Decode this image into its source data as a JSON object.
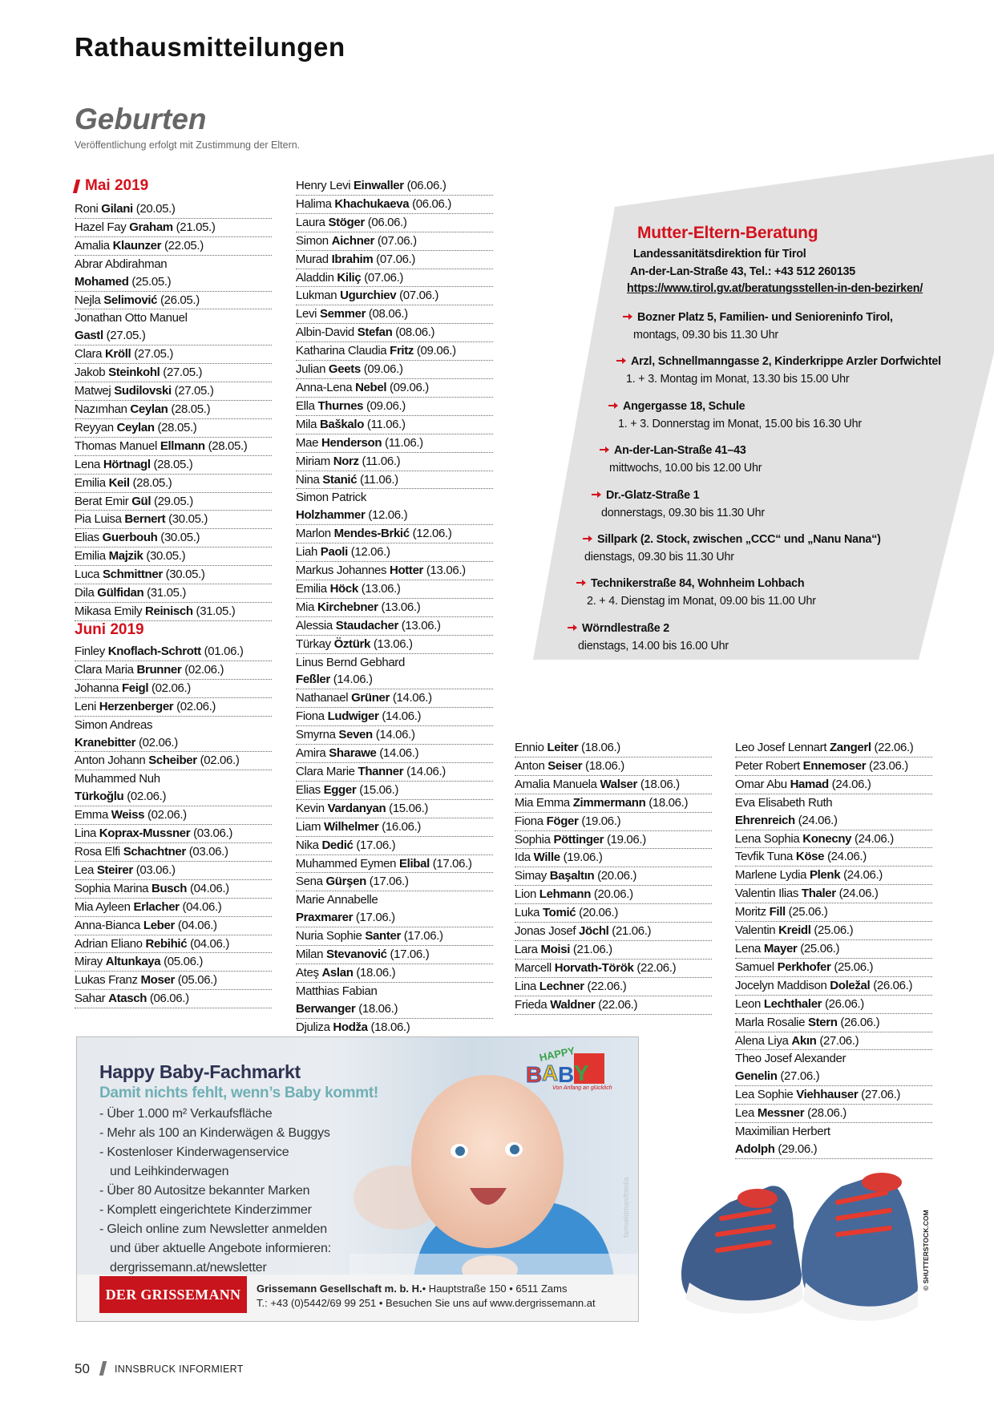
{
  "header": {
    "title": "Rathausmitteilungen"
  },
  "section": {
    "title": "Geburten",
    "note": "Veröffentlichung erfolgt mit Zustimmung der Eltern."
  },
  "colors": {
    "accent": "#d3111c",
    "box_bg": "#e2e2e2"
  },
  "births": {
    "mai": {
      "heading": "Mai 2019",
      "entries": [
        {
          "given": "Roni",
          "surname": "Gilani",
          "date": "(20.05.)"
        },
        {
          "given": "Hazel Fay",
          "surname": "Graham",
          "date": "(21.05.)"
        },
        {
          "given": "Amalia",
          "surname": "Klaunzer",
          "date": "(22.05.)"
        },
        {
          "given": "Abrar Abdirahman",
          "surname": "Mohamed",
          "date": "(25.05.)",
          "wrap": true
        },
        {
          "given": "Nejla",
          "surname": "Selimović",
          "date": "(26.05.)"
        },
        {
          "given": "Jonathan Otto Manuel",
          "surname": "Gastl",
          "date": "(27.05.)",
          "wrap": true
        },
        {
          "given": "Clara",
          "surname": "Kröll",
          "date": "(27.05.)"
        },
        {
          "given": "Jakob",
          "surname": "Steinkohl",
          "date": "(27.05.)"
        },
        {
          "given": "Matwej",
          "surname": "Sudilovski",
          "date": "(27.05.)"
        },
        {
          "given": "Nazımhan",
          "surname": "Ceylan",
          "date": "(28.05.)"
        },
        {
          "given": "Reyyan",
          "surname": "Ceylan",
          "date": "(28.05.)"
        },
        {
          "given": "Thomas Manuel",
          "surname": "Ellmann",
          "date": "(28.05.)"
        },
        {
          "given": "Lena",
          "surname": "Hörtnagl",
          "date": "(28.05.)"
        },
        {
          "given": "Emilia",
          "surname": "Keil",
          "date": "(28.05.)"
        },
        {
          "given": "Berat Emir",
          "surname": "Gül",
          "date": "(29.05.)"
        },
        {
          "given": "Pia Luisa",
          "surname": "Bernert",
          "date": "(30.05.)"
        },
        {
          "given": "Elias",
          "surname": "Guerbouh",
          "date": "(30.05.)"
        },
        {
          "given": "Emilia",
          "surname": "Majzik",
          "date": "(30.05.)"
        },
        {
          "given": "Luca",
          "surname": "Schmittner",
          "date": "(30.05.)"
        },
        {
          "given": "Dila",
          "surname": "Gülfidan",
          "date": "(31.05.)"
        },
        {
          "given": "Mikasa Emily",
          "surname": "Reinisch",
          "date": "(31.05.)"
        }
      ]
    },
    "juni": {
      "heading": "Juni 2019",
      "col1": [
        {
          "given": "Finley",
          "surname": "Knoflach-Schrott",
          "date": "(01.06.)"
        },
        {
          "given": "Clara Maria",
          "surname": "Brunner",
          "date": "(02.06.)"
        },
        {
          "given": "Johanna",
          "surname": "Feigl",
          "date": "(02.06.)"
        },
        {
          "given": "Leni",
          "surname": "Herzenberger",
          "date": "(02.06.)"
        },
        {
          "given": "Simon Andreas",
          "surname": "Kranebitter",
          "date": "(02.06.)",
          "wrap": true
        },
        {
          "given": "Anton Johann",
          "surname": "Scheiber",
          "date": "(02.06.)"
        },
        {
          "given": "Muhammed Nuh",
          "surname": "Türkoğlu",
          "date": "(02.06.)",
          "wrap": true
        },
        {
          "given": "Emma",
          "surname": "Weiss",
          "date": "(02.06.)"
        },
        {
          "given": "Lina",
          "surname": "Koprax-Mussner",
          "date": "(03.06.)"
        },
        {
          "given": "Rosa Elfi",
          "surname": "Schachtner",
          "date": "(03.06.)"
        },
        {
          "given": "Lea",
          "surname": "Steirer",
          "date": "(03.06.)"
        },
        {
          "given": "Sophia Marina",
          "surname": "Busch",
          "date": "(04.06.)"
        },
        {
          "given": "Mia Ayleen",
          "surname": "Erlacher",
          "date": "(04.06.)"
        },
        {
          "given": "Anna-Bianca",
          "surname": "Leber",
          "date": "(04.06.)"
        },
        {
          "given": "Adrian Eliano",
          "surname": "Rebihić",
          "date": "(04.06.)"
        },
        {
          "given": "Miray",
          "surname": "Altunkaya",
          "date": "(05.06.)"
        },
        {
          "given": "Lukas Franz",
          "surname": "Moser",
          "date": "(05.06.)"
        },
        {
          "given": "Sahar",
          "surname": "Atasch",
          "date": "(06.06.)"
        }
      ],
      "col2": [
        {
          "given": "Henry Levi",
          "surname": "Einwaller",
          "date": "(06.06.)"
        },
        {
          "given": "Halima",
          "surname": "Khachukaeva",
          "date": "(06.06.)"
        },
        {
          "given": "Laura",
          "surname": "Stöger",
          "date": "(06.06.)"
        },
        {
          "given": "Simon",
          "surname": "Aichner",
          "date": "(07.06.)"
        },
        {
          "given": "Murad",
          "surname": "Ibrahim",
          "date": "(07.06.)"
        },
        {
          "given": "Aladdin",
          "surname": "Kiliç",
          "date": "(07.06.)"
        },
        {
          "given": "Lukman",
          "surname": "Ugurchiev",
          "date": "(07.06.)"
        },
        {
          "given": "Levi",
          "surname": "Semmer",
          "date": "(08.06.)"
        },
        {
          "given": "Albin-David",
          "surname": "Stefan",
          "date": "(08.06.)"
        },
        {
          "given": "Katharina Claudia",
          "surname": "Fritz",
          "date": "(09.06.)"
        },
        {
          "given": "Julian",
          "surname": "Geets",
          "date": "(09.06.)"
        },
        {
          "given": "Anna-Lena",
          "surname": "Nebel",
          "date": "(09.06.)"
        },
        {
          "given": "Ella",
          "surname": "Thurnes",
          "date": "(09.06.)"
        },
        {
          "given": "Mila",
          "surname": "Baškalo",
          "date": "(11.06.)"
        },
        {
          "given": "Mae",
          "surname": "Henderson",
          "date": "(11.06.)"
        },
        {
          "given": "Miriam",
          "surname": "Norz",
          "date": "(11.06.)"
        },
        {
          "given": "Nina",
          "surname": "Stanić",
          "date": "(11.06.)"
        },
        {
          "given": "Simon Patrick",
          "surname": "Holzhammer",
          "date": "(12.06.)",
          "wrap": true
        },
        {
          "given": "Marlon",
          "surname": "Mendes-Brkić",
          "date": "(12.06.)"
        },
        {
          "given": "Liah",
          "surname": "Paoli",
          "date": "(12.06.)"
        },
        {
          "given": "Markus Johannes",
          "surname": "Hotter",
          "date": "(13.06.)"
        },
        {
          "given": "Emilia",
          "surname": "Höck",
          "date": "(13.06.)"
        },
        {
          "given": "Mia",
          "surname": "Kirchebner",
          "date": "(13.06.)"
        },
        {
          "given": "Alessia",
          "surname": "Staudacher",
          "date": "(13.06.)"
        },
        {
          "given": "Türkay",
          "surname": "Öztürk",
          "date": "(13.06.)"
        },
        {
          "given": "Linus Bernd Gebhard",
          "surname": "Feßler",
          "date": "(14.06.)",
          "wrap": true
        },
        {
          "given": "Nathanael",
          "surname": "Grüner",
          "date": "(14.06.)"
        },
        {
          "given": "Fiona",
          "surname": "Ludwiger",
          "date": "(14.06.)"
        },
        {
          "given": "Smyrna",
          "surname": "Seven",
          "date": "(14.06.)"
        },
        {
          "given": "Amira",
          "surname": "Sharawe",
          "date": "(14.06.)"
        },
        {
          "given": "Clara Marie",
          "surname": "Thanner",
          "date": "(14.06.)"
        },
        {
          "given": "Elias",
          "surname": "Egger",
          "date": "(15.06.)"
        },
        {
          "given": "Kevin",
          "surname": "Vardanyan",
          "date": "(15.06.)"
        },
        {
          "given": "Liam",
          "surname": "Wilhelmer",
          "date": "(16.06.)"
        },
        {
          "given": "Nika",
          "surname": "Dedić",
          "date": "(17.06.)"
        },
        {
          "given": "Muhammed Eymen",
          "surname": "Elibal",
          "date": "(17.06.)"
        },
        {
          "given": "Sena",
          "surname": "Gürşen",
          "date": "(17.06.)"
        },
        {
          "given": "Marie Annabelle",
          "surname": "Praxmarer",
          "date": "(17.06.)",
          "wrap": true
        },
        {
          "given": "Nuria Sophie",
          "surname": "Santer",
          "date": "(17.06.)"
        },
        {
          "given": "Milan",
          "surname": "Stevanović",
          "date": "(17.06.)"
        },
        {
          "given": "Ateş",
          "surname": "Aslan",
          "date": "(18.06.)"
        },
        {
          "given": "Matthias Fabian",
          "surname": "Berwanger",
          "date": "(18.06.)",
          "wrap": true
        },
        {
          "given": "Djuliza",
          "surname": "Hodža",
          "date": "(18.06.)"
        }
      ],
      "col3": [
        {
          "given": "Ennio",
          "surname": "Leiter",
          "date": "(18.06.)"
        },
        {
          "given": "Anton",
          "surname": "Seiser",
          "date": "(18.06.)"
        },
        {
          "given": "Amalia Manuela",
          "surname": "Walser",
          "date": "(18.06.)"
        },
        {
          "given": "Mia Emma",
          "surname": "Zimmermann",
          "date": "(18.06.)"
        },
        {
          "given": "Fiona",
          "surname": "Föger",
          "date": "(19.06.)"
        },
        {
          "given": "Sophia",
          "surname": "Pöttinger",
          "date": "(19.06.)"
        },
        {
          "given": "Ida",
          "surname": "Wille",
          "date": "(19.06.)"
        },
        {
          "given": "Simay",
          "surname": "Başaltın",
          "date": "(20.06.)"
        },
        {
          "given": "Lion",
          "surname": "Lehmann",
          "date": "(20.06.)"
        },
        {
          "given": "Luka",
          "surname": "Tomić",
          "date": "(20.06.)"
        },
        {
          "given": "Jonas Josef",
          "surname": "Jöchl",
          "date": "(21.06.)"
        },
        {
          "given": "Lara",
          "surname": "Moisi",
          "date": "(21.06.)"
        },
        {
          "given": "Marcell",
          "surname": "Horvath-Török",
          "date": "(22.06.)"
        },
        {
          "given": "Lina",
          "surname": "Lechner",
          "date": "(22.06.)"
        },
        {
          "given": "Frieda",
          "surname": "Waldner",
          "date": "(22.06.)"
        }
      ],
      "col4": [
        {
          "given": "Leo Josef Lennart",
          "surname": "Zangerl",
          "date": "(22.06.)"
        },
        {
          "given": "Peter Robert",
          "surname": "Ennemoser",
          "date": "(23.06.)"
        },
        {
          "given": "Omar Abu",
          "surname": "Hamad",
          "date": "(24.06.)"
        },
        {
          "given": "Eva Elisabeth Ruth",
          "surname": "Ehrenreich",
          "date": "(24.06.)",
          "wrap": true
        },
        {
          "given": "Lena Sophia",
          "surname": "Konecny",
          "date": "(24.06.)"
        },
        {
          "given": "Tevfik Tuna",
          "surname": "Köse",
          "date": "(24.06.)"
        },
        {
          "given": "Marlene Lydia",
          "surname": "Plenk",
          "date": "(24.06.)"
        },
        {
          "given": "Valentin Ilias",
          "surname": "Thaler",
          "date": "(24.06.)"
        },
        {
          "given": "Moritz",
          "surname": "Fill",
          "date": "(25.06.)"
        },
        {
          "given": "Valentin",
          "surname": "Kreidl",
          "date": "(25.06.)"
        },
        {
          "given": "Lena",
          "surname": "Mayer",
          "date": "(25.06.)"
        },
        {
          "given": "Samuel",
          "surname": "Perkhofer",
          "date": "(25.06.)"
        },
        {
          "given": "Jocelyn Maddison",
          "surname": "Doležal",
          "date": "(26.06.)"
        },
        {
          "given": "Leon",
          "surname": "Lechthaler",
          "date": "(26.06.)"
        },
        {
          "given": "Marla Rosalie",
          "surname": "Stern",
          "date": "(26.06.)"
        },
        {
          "given": "Alena Liya",
          "surname": "Akın",
          "date": "(27.06.)"
        },
        {
          "given": "Theo Josef Alexander",
          "surname": "Genelin",
          "date": "(27.06.)",
          "wrap": true
        },
        {
          "given": "Lea Sophie",
          "surname": "Viehhauser",
          "date": "(27.06.)"
        },
        {
          "given": "Lea",
          "surname": "Messner",
          "date": "(28.06.)"
        },
        {
          "given": "Maximilian Herbert",
          "surname": "Adolph",
          "date": "(29.06.)",
          "wrap": true
        }
      ]
    }
  },
  "beratung": {
    "title": "Mutter-Eltern-Beratung",
    "org": "Landessanitätsdirektion für Tirol",
    "address": "An-der-Lan-Straße 43, Tel.: +43 512 260135",
    "url": "https://www.tirol.gv.at/beratungsstellen-in-den-bezirken/",
    "arrow_icon": "arrow-right-icon",
    "locations": [
      {
        "place": "Bozner Platz 5, Familien- und Senioreninfo Tirol,",
        "time": "montags, 09.30 bis 11.30 Uhr"
      },
      {
        "place": "Arzl, Schnellmanngasse 2, Kinderkrippe Arzler Dorfwichtel",
        "time": "1. + 3. Montag im Monat, 13.30 bis 15.00 Uhr"
      },
      {
        "place": "Angergasse 18, Schule",
        "time": "1. + 3. Donnerstag im Monat, 15.00 bis 16.30 Uhr"
      },
      {
        "place": "An-der-Lan-Straße 41–43",
        "time": "mittwochs, 10.00 bis 12.00 Uhr"
      },
      {
        "place": "Dr.-Glatz-Straße 1",
        "time": "donnerstags, 09.30 bis 11.30 Uhr"
      },
      {
        "place": "Sillpark (2. Stock, zwischen „CCC“ und „Nanu Nana“)",
        "time": "dienstags, 09.30 bis 11.30 Uhr"
      },
      {
        "place": "Technikerstraße 84, Wohnheim Lohbach",
        "time": "2. + 4. Dienstag im Monat, 09.00 bis 11.00 Uhr"
      },
      {
        "place": "Wörndlestraße 2",
        "time": "dienstags, 14.00 bis 16.00 Uhr"
      }
    ]
  },
  "ad": {
    "title": "Happy Baby-Fachmarkt",
    "subtitle": "Damit nichts fehlt, wenn’s Baby kommt!",
    "bullets": [
      "- Über 1.000 m² Verkaufsfläche",
      "- Mehr als 100 an Kinderwägen & Buggys",
      "- Kostenloser Kinderwagenservice",
      "  und Leihkinderwagen",
      "- Über 80 Autositze bekannter Marken",
      "- Komplett eingerichtete Kinderzimmer",
      "- Gleich online zum Newsletter anmelden",
      "  und über aktuelle Angebote informieren:",
      "  dergrissemann.at/newsletter"
    ],
    "logo_text": "HAPPY BABY",
    "logo_tagline": "Von Anfang an glücklich",
    "photo_credit": "famveldman/fotolia",
    "brand": "DER GRISSEMANN",
    "company": "Grissemann Gesellschaft m. b. H.",
    "company_address": " • Hauptstraße 150 • 6511 Zams",
    "contact": "T.: +43 (0)5442/69 99 251 • Besuchen Sie uns auf www.dergrissemann.at"
  },
  "shoes_photo": {
    "credit": "© SHUTTERSTOCK.COM"
  },
  "footer": {
    "page_number": "50",
    "publication": "INNSBRUCK INFORMIERT"
  }
}
